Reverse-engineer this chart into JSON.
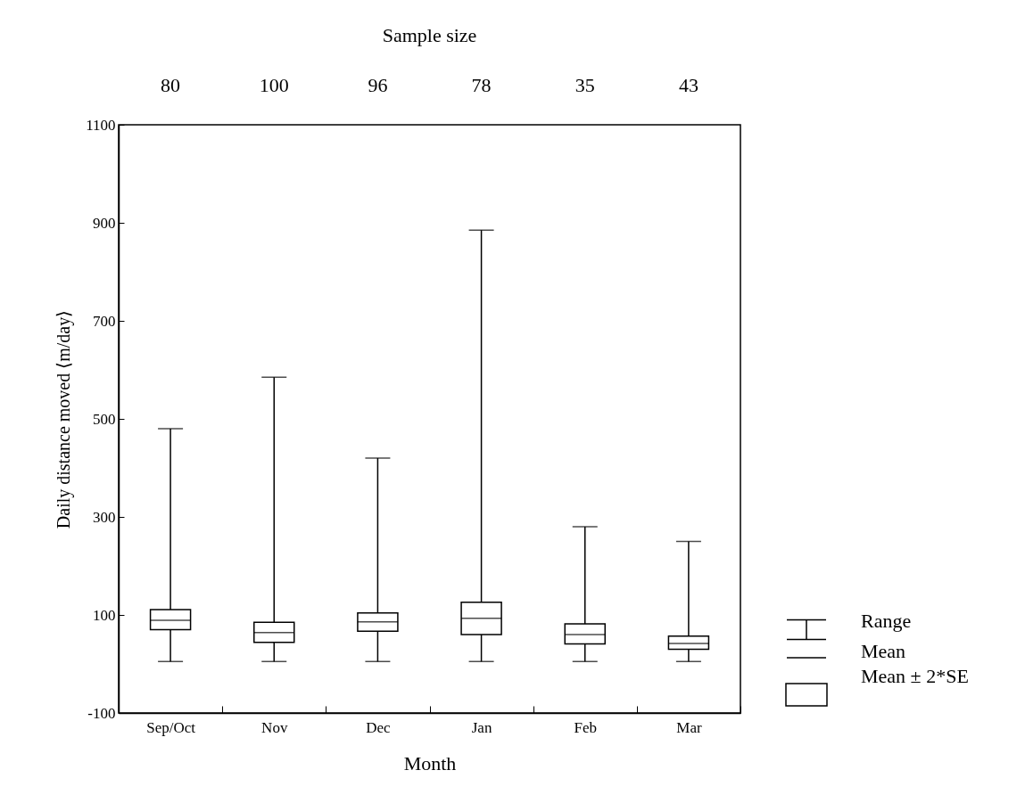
{
  "chart_data": {
    "type": "box",
    "xlabel": "Month",
    "ylabel": "Daily distance moved ⟨m/day⟩",
    "categories": [
      "Sep/Oct",
      "Nov",
      "Dec",
      "Jan",
      "Feb",
      "Mar"
    ],
    "boxes": [
      {
        "low": 5,
        "q1": 70,
        "median": 89,
        "q3": 111,
        "high": 480
      },
      {
        "low": 5,
        "q1": 44,
        "median": 64,
        "q3": 85,
        "high": 585
      },
      {
        "low": 5,
        "q1": 67,
        "median": 86,
        "q3": 104,
        "high": 420
      },
      {
        "low": 5,
        "q1": 60,
        "median": 93,
        "q3": 126,
        "high": 885
      },
      {
        "low": 5,
        "q1": 41,
        "median": 60,
        "q3": 82,
        "high": 280
      },
      {
        "low": 5,
        "q1": 30,
        "median": 42,
        "q3": 57,
        "high": 250
      }
    ],
    "ylim": [
      -100,
      1100
    ],
    "yticks": [
      -100,
      100,
      300,
      500,
      700,
      900,
      1100
    ],
    "annotations": [
      "Sample size",
      "80",
      "100",
      "96",
      "78",
      "35",
      "43",
      "Range",
      "Mean",
      "Mean ± 2*SE"
    ]
  }
}
